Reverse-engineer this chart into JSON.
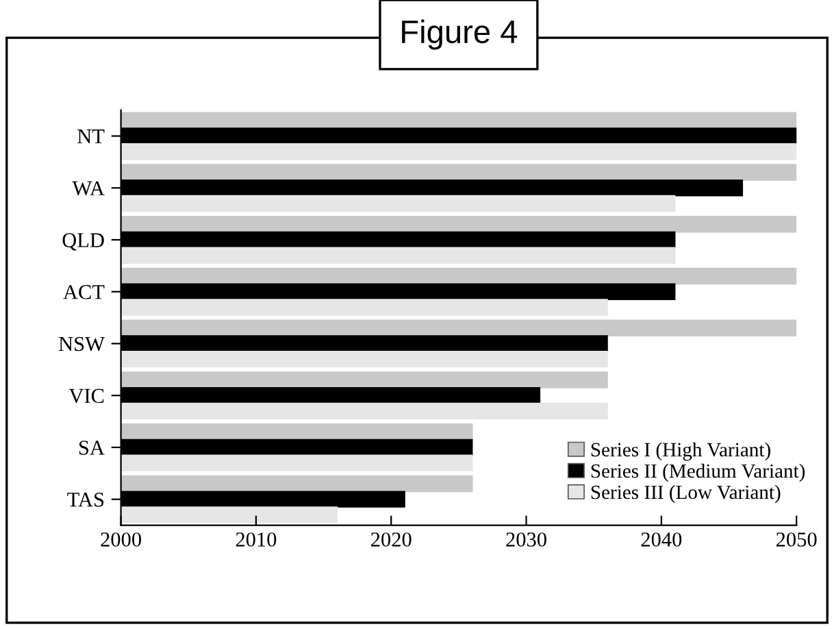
{
  "chart_data": {
    "type": "bar",
    "orientation": "horizontal",
    "title": "Figure 4",
    "categories": [
      "NT",
      "WA",
      "QLD",
      "ACT",
      "NSW",
      "VIC",
      "SA",
      "TAS"
    ],
    "series": [
      {
        "name": "Series I (High Variant)",
        "color": "#c8c8c8",
        "values": [
          2050,
          2050,
          2050,
          2050,
          2050,
          2036,
          2026,
          2026
        ]
      },
      {
        "name": "Series II (Medium Variant)",
        "color": "#000000",
        "values": [
          2050,
          2046,
          2041,
          2041,
          2036,
          2031,
          2026,
          2021
        ]
      },
      {
        "name": "Series III (Low Variant)",
        "color": "#e6e6e6",
        "values": [
          2050,
          2041,
          2041,
          2036,
          2036,
          2036,
          2026,
          2016
        ]
      }
    ],
    "xlim": [
      2000,
      2050
    ],
    "xticks": [
      2000,
      2010,
      2020,
      2030,
      2040,
      2050
    ],
    "grid": false,
    "legend": "bottom right"
  }
}
